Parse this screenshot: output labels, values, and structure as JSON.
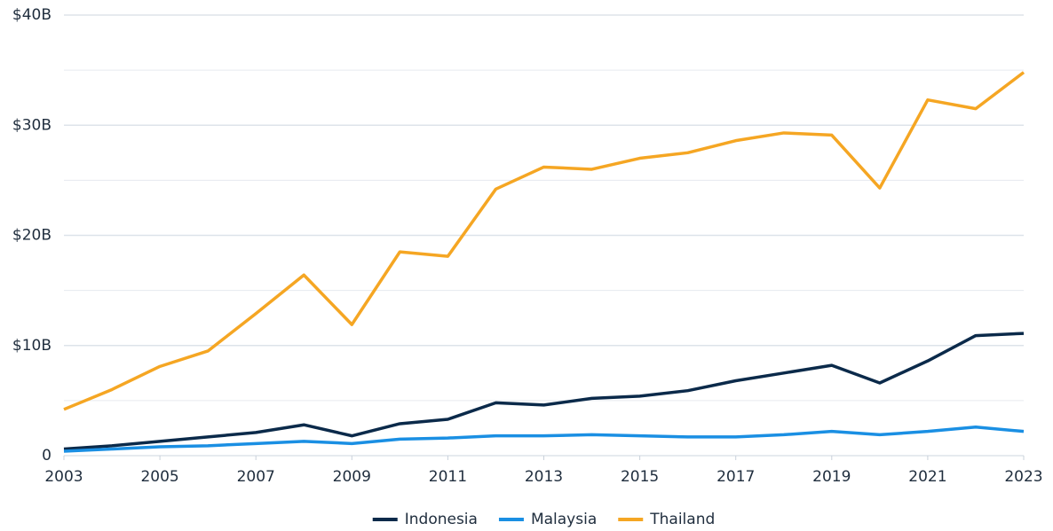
{
  "chart_data": {
    "type": "line",
    "x": [
      2003,
      2004,
      2005,
      2006,
      2007,
      2008,
      2009,
      2010,
      2011,
      2012,
      2013,
      2014,
      2015,
      2016,
      2017,
      2018,
      2019,
      2020,
      2021,
      2022,
      2023
    ],
    "series": [
      {
        "name": "Indonesia",
        "color": "#0b2a4a",
        "values": [
          0.6,
          0.9,
          1.3,
          1.7,
          2.1,
          2.8,
          1.8,
          2.9,
          3.3,
          4.8,
          4.6,
          5.2,
          5.4,
          5.9,
          6.8,
          7.5,
          8.2,
          6.6,
          8.6,
          10.9,
          11.1
        ]
      },
      {
        "name": "Malaysia",
        "color": "#1a8fe3",
        "values": [
          0.4,
          0.6,
          0.8,
          0.9,
          1.1,
          1.3,
          1.1,
          1.5,
          1.6,
          1.8,
          1.8,
          1.9,
          1.8,
          1.7,
          1.7,
          1.9,
          2.2,
          1.9,
          2.2,
          2.6,
          2.2
        ]
      },
      {
        "name": "Thailand",
        "color": "#f5a623",
        "values": [
          4.2,
          6.0,
          8.1,
          9.5,
          12.9,
          16.4,
          11.9,
          18.5,
          18.1,
          24.2,
          26.2,
          26.0,
          27.0,
          27.5,
          28.6,
          29.3,
          29.1,
          24.3,
          32.3,
          31.5,
          34.8
        ]
      }
    ],
    "xlim": [
      2003,
      2023
    ],
    "xticks": [
      2003,
      2005,
      2007,
      2009,
      2011,
      2013,
      2015,
      2017,
      2019,
      2021,
      2023
    ],
    "ylim": [
      0,
      40
    ],
    "yticks": [
      0,
      {
        "value": 10,
        "label": "$10B"
      },
      {
        "value": 20,
        "label": "$20B"
      },
      {
        "value": 30,
        "label": "$30B"
      },
      {
        "value": 40,
        "label": "$40B"
      }
    ],
    "minor_yticks": [
      5,
      15,
      25,
      35
    ],
    "grid": true,
    "legend": "bottom"
  }
}
